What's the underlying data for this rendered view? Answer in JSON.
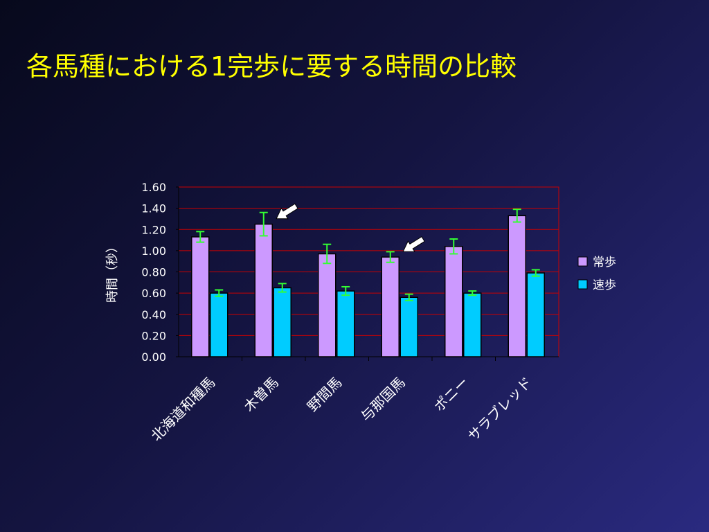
{
  "slide": {
    "title": "各馬種における1完歩に要する時間の比較"
  },
  "chart_data": {
    "type": "bar",
    "title": "",
    "xlabel": "",
    "ylabel": "時間（秒）",
    "ylim": [
      0,
      1.6
    ],
    "yticks": [
      "0.00",
      "0.20",
      "0.40",
      "0.60",
      "0.80",
      "1.00",
      "1.20",
      "1.40",
      "1.60"
    ],
    "categories": [
      "北海道和種馬",
      "木曽馬",
      "野間馬",
      "与那国馬",
      "ポニー",
      "サラブレッド"
    ],
    "series": [
      {
        "name": "常歩",
        "color": "#cc99ff",
        "values": [
          1.13,
          1.25,
          0.97,
          0.94,
          1.04,
          1.33
        ],
        "errors": [
          0.05,
          0.11,
          0.09,
          0.05,
          0.07,
          0.06
        ]
      },
      {
        "name": "速歩",
        "color": "#00ccff",
        "values": [
          0.6,
          0.65,
          0.62,
          0.56,
          0.6,
          0.79
        ],
        "errors": [
          0.03,
          0.04,
          0.04,
          0.03,
          0.02,
          0.03
        ]
      }
    ],
    "grid": true,
    "legend": "right",
    "annotations": [
      {
        "type": "arrow",
        "color": "#ffffff",
        "category": "木曽馬"
      },
      {
        "type": "arrow",
        "color": "#ffffff",
        "category": "与那国馬"
      }
    ],
    "colors": {
      "gridlines": "#cc0000",
      "plot_border": "#cc0000",
      "error_bars": "#33ff33",
      "axis_text": "#ffffff",
      "title": "#ffff00"
    }
  }
}
